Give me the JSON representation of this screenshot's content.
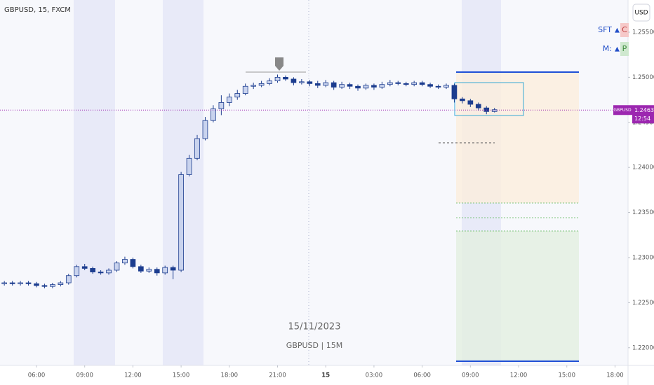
{
  "chart_data": {
    "type": "candlestick",
    "title": "GBPUSD, 15, FXCM",
    "watermark_date": "15/11/2023",
    "watermark_symbol": "GBPUSD | 15M",
    "currency": "USD",
    "indicators": [
      {
        "name": "SFT",
        "arrow": "▲",
        "tag": "C"
      },
      {
        "name": "M:",
        "arrow": "▲",
        "tag": "P"
      }
    ],
    "symbol_label": "GBPUSD",
    "last_price": 1.24636,
    "countdown": "12:54",
    "up_color": "#c9d3ee",
    "down_color": "#1c3d8f",
    "outline_color": "#1c3d8f",
    "xlim": [
      3.73,
      42.81
    ],
    "ylim": [
      1.21804,
      1.25857
    ],
    "xticks": [
      {
        "value": 6,
        "label": "06:00"
      },
      {
        "value": 9,
        "label": "09:00"
      },
      {
        "value": 12,
        "label": "12:00"
      },
      {
        "value": 15,
        "label": "15:00"
      },
      {
        "value": 18,
        "label": "18:00"
      },
      {
        "value": 21,
        "label": "21:00"
      },
      {
        "value": 24,
        "label": "15"
      },
      {
        "value": 27,
        "label": "03:00"
      },
      {
        "value": 30,
        "label": "06:00"
      },
      {
        "value": 33,
        "label": "09:00"
      },
      {
        "value": 36,
        "label": "12:00"
      },
      {
        "value": 39,
        "label": "15:00"
      },
      {
        "value": 42,
        "label": "18:00"
      }
    ],
    "yticks": [
      {
        "value": 1.22,
        "label": "1.22000"
      },
      {
        "value": 1.225,
        "label": "1.22500"
      },
      {
        "value": 1.23,
        "label": "1.23000"
      },
      {
        "value": 1.235,
        "label": "1.23500"
      },
      {
        "value": 1.24,
        "label": "1.24000"
      },
      {
        "value": 1.245,
        "label": "1.24500"
      },
      {
        "value": 1.25,
        "label": "1.25000"
      },
      {
        "value": 1.255,
        "label": "1.25500"
      }
    ],
    "x": [
      4,
      4.5,
      5,
      5.5,
      6,
      6.5,
      7,
      7.5,
      8,
      8.5,
      9,
      9.5,
      10,
      10.5,
      11,
      11.5,
      12,
      12.5,
      13,
      13.5,
      14,
      14.5,
      15,
      15.5,
      16,
      16.5,
      17,
      17.5,
      18,
      18.5,
      19,
      19.5,
      20,
      20.5,
      21,
      21.5,
      22,
      22.5,
      23,
      23.5,
      24,
      24.5,
      25,
      25.5,
      26,
      26.5,
      27,
      27.5,
      28,
      28.5,
      29,
      29.5,
      30,
      30.5,
      31,
      31.5,
      32,
      32.5,
      33,
      33.5,
      34,
      34.5
    ],
    "open": [
      1.2271,
      1.2272,
      1.2271,
      1.2272,
      1.2271,
      1.2269,
      1.2268,
      1.227,
      1.2272,
      1.228,
      1.229,
      1.2288,
      1.2284,
      1.2283,
      1.2286,
      1.2294,
      1.2298,
      1.229,
      1.2285,
      1.2287,
      1.2283,
      1.2289,
      1.2286,
      1.2392,
      1.241,
      1.2432,
      1.2452,
      1.2465,
      1.2472,
      1.2478,
      1.2482,
      1.249,
      1.2491,
      1.2493,
      1.2496,
      1.25,
      1.2498,
      1.2494,
      1.2495,
      1.2493,
      1.2491,
      1.2494,
      1.2489,
      1.2492,
      1.249,
      1.2488,
      1.2491,
      1.2489,
      1.2492,
      1.2494,
      1.2493,
      1.2492,
      1.2494,
      1.2492,
      1.249,
      1.2489,
      1.2491,
      1.2476,
      1.2474,
      1.247,
      1.2466,
      1.2462
    ],
    "high": [
      1.2274,
      1.2274,
      1.2274,
      1.2274,
      1.2273,
      1.2271,
      1.2272,
      1.2274,
      1.2282,
      1.2292,
      1.2293,
      1.229,
      1.2286,
      1.2288,
      1.2296,
      1.2301,
      1.23,
      1.2292,
      1.2289,
      1.2289,
      1.2291,
      1.2291,
      1.2395,
      1.2414,
      1.2436,
      1.2456,
      1.2469,
      1.248,
      1.2482,
      1.2486,
      1.2493,
      1.2494,
      1.2496,
      1.2499,
      1.2503,
      1.2502,
      1.25,
      1.2498,
      1.2497,
      1.2496,
      1.2497,
      1.2496,
      1.2495,
      1.2494,
      1.2492,
      1.2493,
      1.2493,
      1.2495,
      1.2497,
      1.2496,
      1.2495,
      1.2496,
      1.2496,
      1.2494,
      1.2492,
      1.2493,
      1.2493,
      1.2478,
      1.2476,
      1.2472,
      1.2468,
      1.2466
    ],
    "low": [
      1.2269,
      1.2269,
      1.2269,
      1.2269,
      1.2267,
      1.2266,
      1.2266,
      1.2268,
      1.227,
      1.2278,
      1.2286,
      1.2282,
      1.2281,
      1.2281,
      1.2284,
      1.2292,
      1.2288,
      1.2283,
      1.2283,
      1.228,
      1.2281,
      1.2276,
      1.2284,
      1.239,
      1.2408,
      1.243,
      1.245,
      1.2458,
      1.2468,
      1.2475,
      1.248,
      1.2487,
      1.2489,
      1.2491,
      1.2494,
      1.2496,
      1.2491,
      1.2492,
      1.249,
      1.2488,
      1.2489,
      1.2486,
      1.2487,
      1.2487,
      1.2485,
      1.2486,
      1.2486,
      1.2487,
      1.249,
      1.2491,
      1.249,
      1.249,
      1.249,
      1.2488,
      1.2487,
      1.2487,
      1.2472,
      1.2471,
      1.2467,
      1.2463,
      1.2459,
      1.2461
    ],
    "close": [
      1.2272,
      1.2271,
      1.2272,
      1.2271,
      1.2269,
      1.2268,
      1.227,
      1.2272,
      1.228,
      1.229,
      1.2288,
      1.2284,
      1.2283,
      1.2286,
      1.2294,
      1.2298,
      1.229,
      1.2285,
      1.2287,
      1.2283,
      1.2289,
      1.2286,
      1.2392,
      1.241,
      1.2432,
      1.2452,
      1.2465,
      1.2472,
      1.2478,
      1.2482,
      1.249,
      1.2491,
      1.2493,
      1.2496,
      1.25,
      1.2498,
      1.2494,
      1.2495,
      1.2493,
      1.2491,
      1.2494,
      1.2489,
      1.2492,
      1.249,
      1.2488,
      1.2491,
      1.2489,
      1.2492,
      1.2494,
      1.2493,
      1.2492,
      1.2494,
      1.2492,
      1.249,
      1.2489,
      1.2491,
      1.2476,
      1.2474,
      1.247,
      1.2466,
      1.2462,
      1.2464
    ]
  }
}
